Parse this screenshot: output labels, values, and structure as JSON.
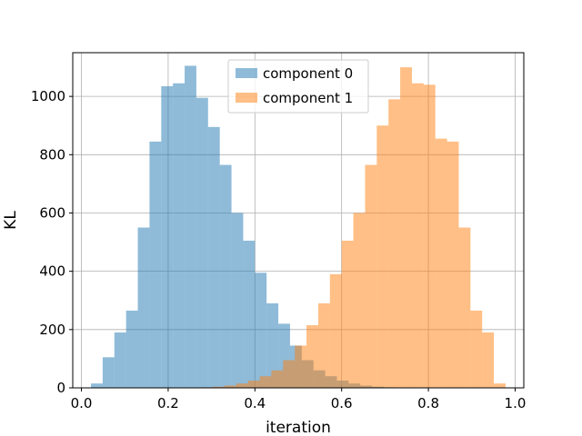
{
  "chart_data": {
    "type": "bar",
    "title": "",
    "xlabel": "iteration",
    "ylabel": "KL",
    "xlim": [
      -0.02,
      1.02
    ],
    "ylim": [
      0,
      1150
    ],
    "xticks": [
      0.0,
      0.2,
      0.4,
      0.6,
      0.8,
      1.0
    ],
    "xtick_labels": [
      "0.0",
      "0.2",
      "0.4",
      "0.6",
      "0.8",
      "1.0"
    ],
    "yticks": [
      0,
      200,
      400,
      600,
      800,
      1000
    ],
    "ytick_labels": [
      "0",
      "200",
      "400",
      "600",
      "800",
      "1000"
    ],
    "grid": true,
    "legend_position": "top-center",
    "series": [
      {
        "name": "component 0",
        "color": "#1f77b4",
        "alpha": 0.5,
        "bin_edges": [
          0.022,
          0.049,
          0.076,
          0.103,
          0.13,
          0.157,
          0.184,
          0.211,
          0.238,
          0.265,
          0.292,
          0.319,
          0.346,
          0.373,
          0.4,
          0.427,
          0.454,
          0.481,
          0.508,
          0.535,
          0.562,
          0.589,
          0.616,
          0.643,
          0.67,
          0.697,
          0.724
        ],
        "counts": [
          15,
          105,
          190,
          265,
          550,
          845,
          1035,
          1045,
          1105,
          995,
          895,
          765,
          600,
          505,
          395,
          290,
          220,
          145,
          95,
          60,
          40,
          25,
          15,
          8,
          4,
          2
        ]
      },
      {
        "name": "component 1",
        "color": "#ff7f0e",
        "alpha": 0.5,
        "bin_edges": [
          0.276,
          0.303,
          0.33,
          0.357,
          0.384,
          0.411,
          0.438,
          0.465,
          0.492,
          0.519,
          0.546,
          0.573,
          0.6,
          0.627,
          0.654,
          0.681,
          0.708,
          0.735,
          0.762,
          0.789,
          0.816,
          0.843,
          0.87,
          0.897,
          0.924,
          0.951,
          0.978
        ],
        "counts": [
          2,
          4,
          8,
          15,
          25,
          40,
          60,
          95,
          145,
          215,
          290,
          390,
          505,
          600,
          765,
          900,
          990,
          1100,
          1045,
          1040,
          855,
          845,
          550,
          265,
          190,
          15
        ]
      }
    ]
  }
}
